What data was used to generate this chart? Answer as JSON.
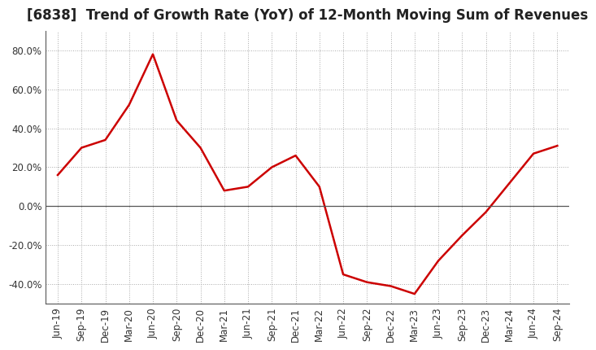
{
  "title": "[6838]  Trend of Growth Rate (YoY) of 12-Month Moving Sum of Revenues",
  "line_color": "#cc0000",
  "background_color": "#ffffff",
  "grid_color": "#aaaaaa",
  "x_labels": [
    "Jun-19",
    "Sep-19",
    "Dec-19",
    "Mar-20",
    "Jun-20",
    "Sep-20",
    "Dec-20",
    "Mar-21",
    "Jun-21",
    "Sep-21",
    "Dec-21",
    "Mar-22",
    "Jun-22",
    "Sep-22",
    "Dec-22",
    "Mar-23",
    "Jun-23",
    "Sep-23",
    "Dec-23",
    "Mar-24",
    "Jun-24",
    "Sep-24"
  ],
  "y_values": [
    16.0,
    30.0,
    34.0,
    52.0,
    78.0,
    44.0,
    30.0,
    8.0,
    10.0,
    20.0,
    26.0,
    10.0,
    -35.0,
    -39.0,
    -41.0,
    -45.0,
    -28.0,
    -15.0,
    -3.0,
    12.0,
    27.0,
    31.0
  ],
  "ylim": [
    -50,
    90
  ],
  "yticks": [
    -40.0,
    -20.0,
    0.0,
    20.0,
    40.0,
    60.0,
    80.0
  ],
  "title_fontsize": 12,
  "tick_fontsize": 8.5
}
